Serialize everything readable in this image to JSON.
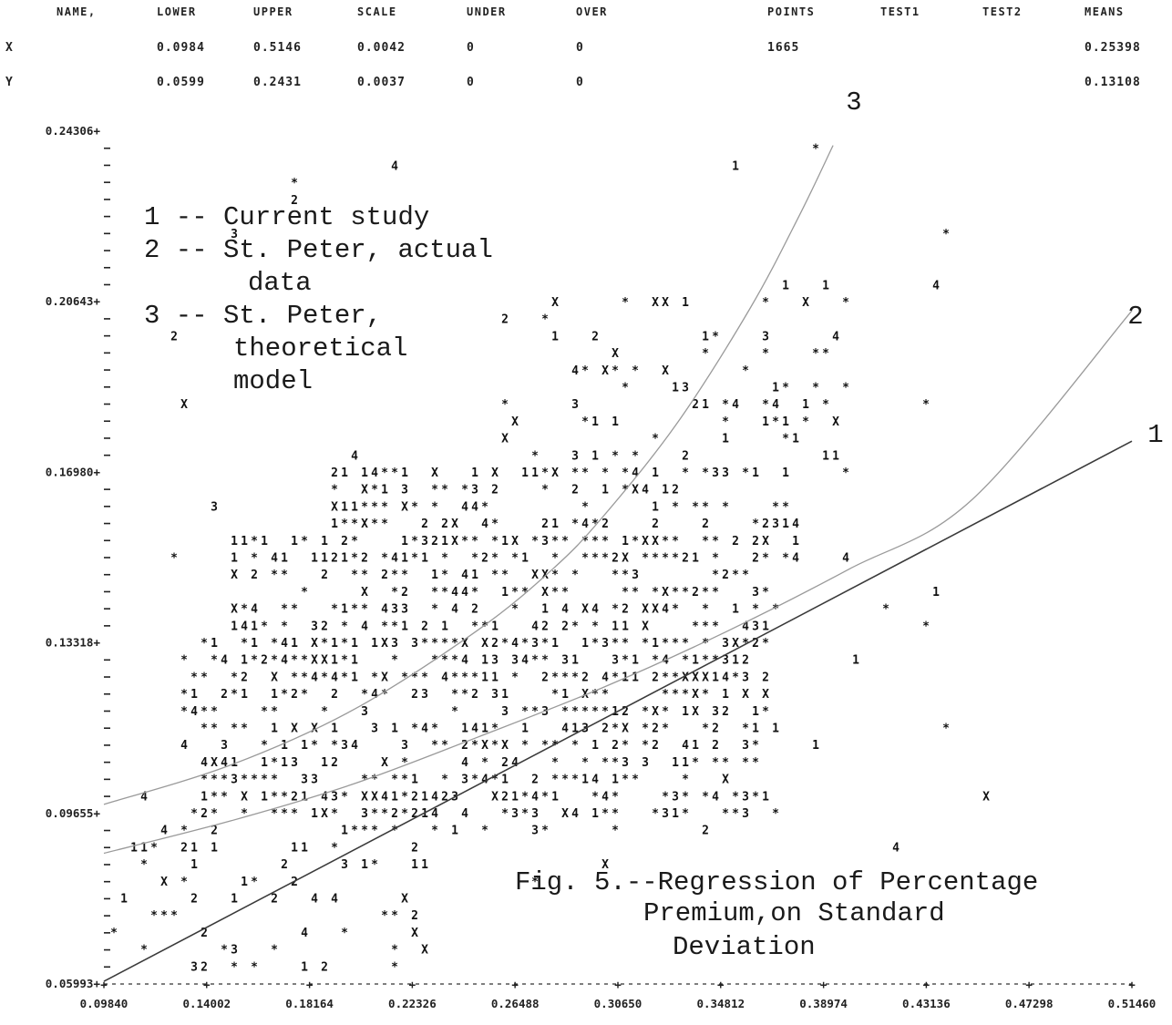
{
  "stats_table": {
    "headers": [
      "NAME,",
      "LOWER",
      "UPPER",
      "SCALE",
      "UNDER",
      "OVER",
      "POINTS",
      "TEST1",
      "TEST2",
      "MEANS"
    ],
    "rows": [
      {
        "name": "X",
        "lower": "0.0984",
        "upper": "0.5146",
        "scale": "0.0042",
        "under": "0",
        "over": "0",
        "points": "1665",
        "test1": "",
        "test2": "",
        "means": "0.25398"
      },
      {
        "name": "Y",
        "lower": "0.0599",
        "upper": "0.2431",
        "scale": "0.0037",
        "under": "0",
        "over": "0",
        "points": "",
        "test1": "",
        "test2": "",
        "means": "0.13108"
      }
    ]
  },
  "chart_data": {
    "type": "scatter",
    "title": "Fig. 5.--Regression of Percentage Premium,on Standard Deviation",
    "caption_lines": [
      "Fig. 5.--Regression of Percentage",
      "Premium,on Standard",
      "Deviation"
    ],
    "xlim": [
      0.0984,
      0.5146
    ],
    "ylim": [
      0.05993,
      0.24306
    ],
    "x_tick_labels": [
      "0.09840",
      "0.14002",
      "0.18164",
      "0.22326",
      "0.26488",
      "0.30650",
      "0.34812",
      "0.38974",
      "0.43136",
      "0.47298",
      "0.51460"
    ],
    "y_tick_labels": [
      "0.24306+",
      "0.20643+",
      "0.16980+",
      "0.13318+",
      "0.09655+",
      "0.05993+"
    ],
    "y_ticks": [
      0.24306,
      0.20643,
      0.1698,
      0.13318,
      0.09655,
      0.05993
    ],
    "legend": {
      "lines": [
        "1 -- Current study",
        "2 -- St. Peter, actual",
        "data",
        "3 -- St. Peter,",
        "theoretical",
        "model"
      ]
    },
    "curve_labels": [
      "1",
      "2",
      "3"
    ],
    "series": [
      {
        "name": "Current study",
        "label": "1",
        "style": "dark",
        "points": [
          [
            0.0984,
            0.0605
          ],
          [
            0.5146,
            0.1765
          ]
        ]
      },
      {
        "name": "St. Peter, actual data",
        "label": "2",
        "style": "light",
        "points": [
          [
            0.0984,
            0.088
          ],
          [
            0.15,
            0.095
          ],
          [
            0.2,
            0.103
          ],
          [
            0.25,
            0.113
          ],
          [
            0.3,
            0.1235
          ],
          [
            0.35,
            0.1355
          ],
          [
            0.4,
            0.149
          ],
          [
            0.45,
            0.164
          ],
          [
            0.5146,
            0.2045
          ]
        ]
      },
      {
        "name": "St. Peter, theoretical model",
        "label": "3",
        "style": "light",
        "points": [
          [
            0.0984,
            0.0985
          ],
          [
            0.15,
            0.107
          ],
          [
            0.2,
            0.119
          ],
          [
            0.25,
            0.136
          ],
          [
            0.28,
            0.149
          ],
          [
            0.3,
            0.16
          ],
          [
            0.33,
            0.18
          ],
          [
            0.36,
            0.205
          ],
          [
            0.38,
            0.225
          ],
          [
            0.3936,
            0.24
          ]
        ]
      }
    ],
    "scatter_clusters": [
      {
        "x": [
          0.09,
          0.23
        ],
        "y": [
          0.06,
          0.1
        ],
        "count": 90
      },
      {
        "x": [
          0.13,
          0.37
        ],
        "y": [
          0.094,
          0.134
        ],
        "count": 520
      },
      {
        "x": [
          0.15,
          0.37
        ],
        "y": [
          0.124,
          0.156
        ],
        "count": 330
      },
      {
        "x": [
          0.19,
          0.38
        ],
        "y": [
          0.15,
          0.172
        ],
        "count": 170
      },
      {
        "x": [
          0.26,
          0.4
        ],
        "y": [
          0.166,
          0.21
        ],
        "count": 80
      },
      {
        "x": [
          0.12,
          0.46
        ],
        "y": [
          0.08,
          0.24
        ],
        "count": 40
      }
    ],
    "symbols": [
      "*",
      "*",
      "*",
      "*",
      "*",
      "1",
      "1",
      "2",
      "3",
      "X",
      "4"
    ],
    "grid": false
  }
}
